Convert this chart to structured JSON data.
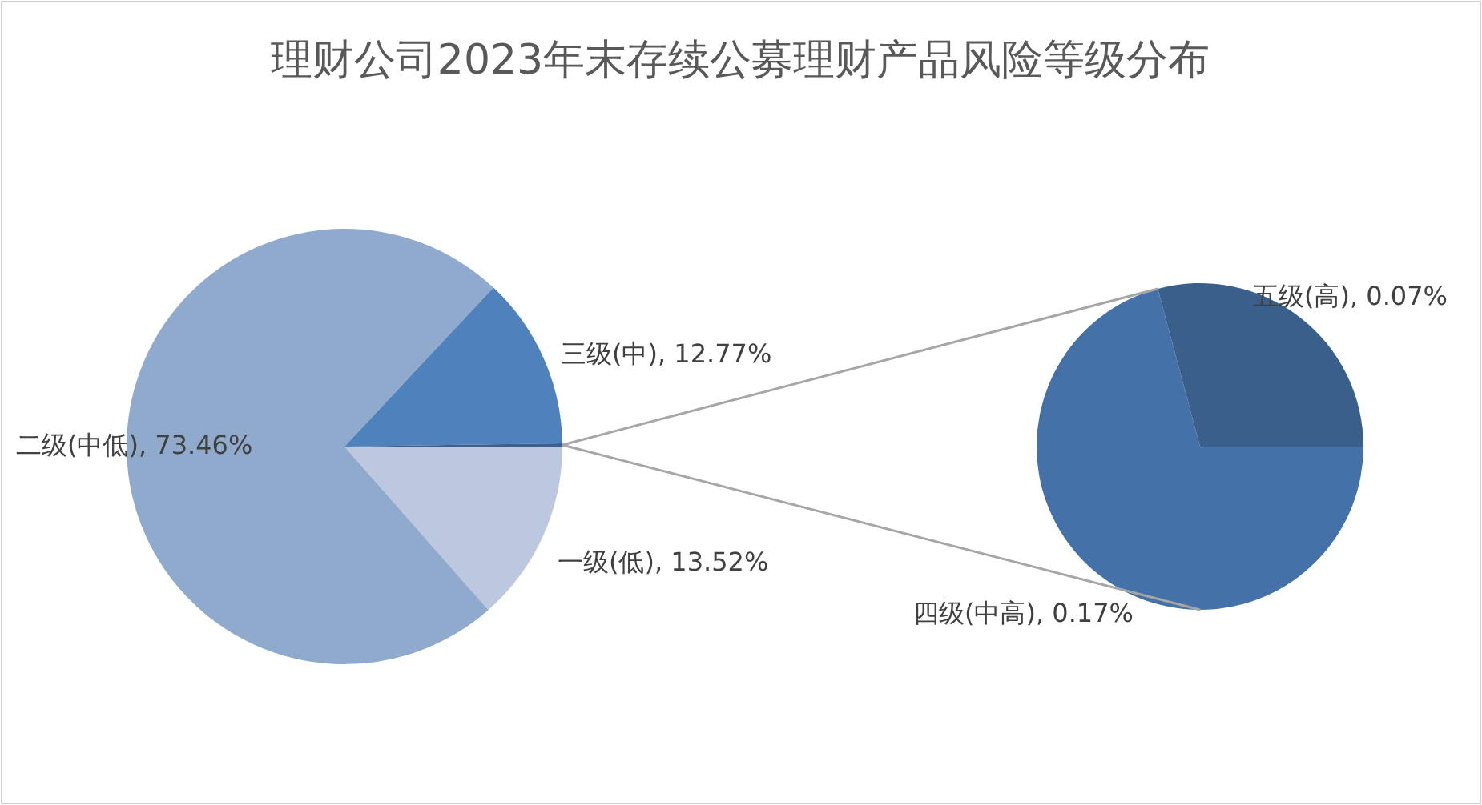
{
  "chart_data": [
    {
      "type": "pie",
      "title": "理财公司2023年末存续公募理财产品风险等级分布",
      "categories": [
        "一级(低)",
        "二级(中低)",
        "三级(中)",
        null
      ],
      "values": [
        13.52,
        73.46,
        12.77,
        0.24
      ],
      "value_labels": [
        "13.52%",
        "73.46%",
        "12.77%",
        null
      ],
      "colors": [
        "#bcc8df",
        "#8faacc",
        "#4f81bd",
        "#3d5f8a"
      ]
    },
    {
      "type": "pie",
      "categories": [
        "四级(中高)",
        "五级(高)"
      ],
      "values": [
        0.17,
        0.07
      ],
      "value_labels": [
        "0.17%",
        "0.07%"
      ],
      "colors": [
        "#4472a8",
        "#3a5f8b"
      ]
    }
  ]
}
